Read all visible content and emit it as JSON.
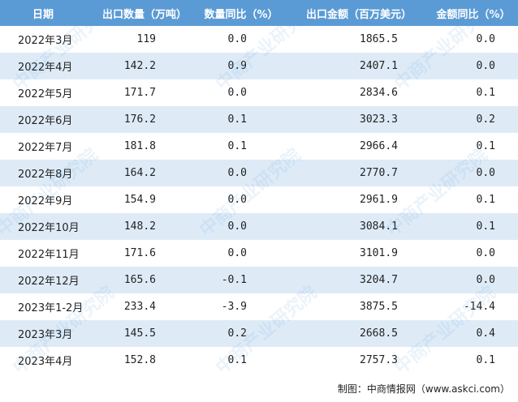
{
  "table": {
    "headers": [
      "日期",
      "出口数量（万吨）",
      "数量同比（%）",
      "出口金额（百万美元）",
      "金额同比（%）"
    ],
    "rows": [
      [
        "2022年3月",
        "119",
        "0.0",
        "1865.5",
        "0.0"
      ],
      [
        "2022年4月",
        "142.2",
        "0.9",
        "2407.1",
        "0.0"
      ],
      [
        "2022年5月",
        "171.7",
        "0.0",
        "2834.6",
        "0.1"
      ],
      [
        "2022年6月",
        "176.2",
        "0.1",
        "3023.3",
        "0.2"
      ],
      [
        "2022年7月",
        "181.8",
        "0.1",
        "2966.4",
        "0.1"
      ],
      [
        "2022年8月",
        "164.2",
        "0.0",
        "2770.7",
        "0.0"
      ],
      [
        "2022年9月",
        "154.9",
        "0.0",
        "2961.9",
        "0.1"
      ],
      [
        "2022年10月",
        "148.2",
        "0.0",
        "3084.1",
        "0.1"
      ],
      [
        "2022年11月",
        "171.6",
        "0.0",
        "3101.9",
        "0.0"
      ],
      [
        "2022年12月",
        "165.6",
        "-0.1",
        "3204.7",
        "0.0"
      ],
      [
        "2023年1-2月",
        "233.4",
        "-3.9",
        "3875.5",
        "-14.4"
      ],
      [
        "2023年3月",
        "145.5",
        "0.2",
        "2668.5",
        "0.4"
      ],
      [
        "2023年4月",
        "152.8",
        "0.1",
        "2757.3",
        "0.1"
      ]
    ]
  },
  "source": "制图：中商情报网（www.askci.com）",
  "watermark": "中商产业研究院",
  "colors": {
    "header_bg": "#5b9bd5",
    "stripe": "#deebf7"
  }
}
